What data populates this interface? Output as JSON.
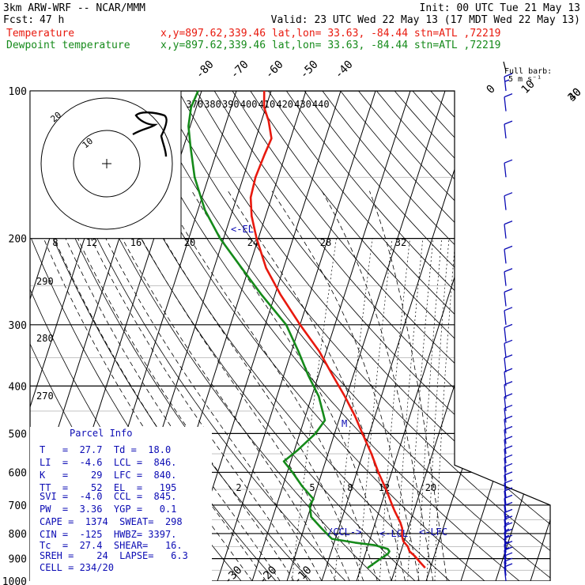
{
  "header": {
    "model": "3km ARW-WRF -- NCAR/MMM",
    "init": "Init: 00 UTC Tue 21 May 13",
    "fcst_label": "Fcst:",
    "fcst_hours": "47 h",
    "valid": "Valid: 23 UTC Wed 22 May 13 (17 MDT Wed 22 May 13)",
    "temp_label": "Temperature",
    "temp_info": "x,y=897.62,339.46   lat,lon= 33.63, -84.44   stn=ATL ,72219",
    "dew_label": "Dewpoint temperature",
    "dew_info": "x,y=897.62,339.46   lat,lon= 33.63, -84.44   stn=ATL ,72219"
  },
  "colors": {
    "temperature": "#e8190e",
    "dewpoint": "#158a1a",
    "text_blue": "#0b0bb4",
    "axes": "#000000"
  },
  "barb_legend": {
    "title": "Full barb:",
    "value": "5 m s⁻¹"
  },
  "hodograph": {
    "rings": [
      "20",
      "10"
    ],
    "kts_label": "kts"
  },
  "parcel": {
    "title": "Parcel Info",
    "rows": [
      "T   =  27.7  Td =  18.0",
      "LI  =  -4.6  LCL =  846.",
      "K   =    29  LFC =  840.",
      "TT  =    52  EL  =   195",
      "SVI =  -4.0  CCL =  845.",
      "PW  =  3.36  YGP =   0.1",
      "CAPE =  1374  SWEAT=  298",
      "CIN =  -125  HWBZ= 3397.",
      "Tc  =  27.4  SHEAR=   16.",
      "SREH =    24  LAPSE=   6.3",
      "CELL = 234/20"
    ]
  },
  "level_markers": {
    "el": "<-EL",
    "ccl": "/CCL->",
    "lcl": "<-LCL",
    "lfc": "<-LFC",
    "m": "M"
  },
  "chart_data": {
    "type": "line",
    "title": "Skew-T Log-P sounding, stn=ATL",
    "pressure_levels": [
      100,
      200,
      300,
      400,
      500,
      600,
      700,
      800,
      900,
      1000
    ],
    "temperature_ticks": [
      -80,
      -70,
      -60,
      -50,
      -40,
      -30,
      -20,
      -10,
      0,
      10,
      30,
      40
    ],
    "theta_labels": [
      370,
      380,
      390,
      400,
      410,
      420,
      430,
      440
    ],
    "theta_labels_left": [
      290,
      280,
      270
    ],
    "mixing_ratio_labels_top": [
      8,
      12,
      16,
      20,
      24,
      28,
      32
    ],
    "mixing_ratio_labels_low": [
      2,
      5,
      8,
      12,
      20
    ],
    "series": [
      {
        "name": "Temperature",
        "points": [
          [
            940,
            28.5
          ],
          [
            915,
            26.5
          ],
          [
            890,
            24.5
          ],
          [
            870,
            22.5
          ],
          [
            850,
            21.5
          ],
          [
            830,
            19.8
          ],
          [
            810,
            18.9
          ],
          [
            780,
            18.2
          ],
          [
            760,
            17.2
          ],
          [
            720,
            14.5
          ],
          [
            700,
            13.2
          ],
          [
            650,
            10.0
          ],
          [
            600,
            6.2
          ],
          [
            550,
            2.5
          ],
          [
            500,
            -2.0
          ],
          [
            460,
            -5.8
          ],
          [
            420,
            -10.5
          ],
          [
            380,
            -16.0
          ],
          [
            340,
            -22.0
          ],
          [
            300,
            -30.0
          ],
          [
            260,
            -38.5
          ],
          [
            230,
            -45.0
          ],
          [
            200,
            -50.5
          ],
          [
            180,
            -54.0
          ],
          [
            165,
            -56.0
          ],
          [
            150,
            -56.5
          ],
          [
            135,
            -56.0
          ],
          [
            125,
            -55.5
          ],
          [
            115,
            -58.0
          ],
          [
            108,
            -60.5
          ],
          [
            100,
            -62.0
          ]
        ]
      },
      {
        "name": "Dewpoint temperature",
        "points": [
          [
            940,
            12.0
          ],
          [
            905,
            14.5
          ],
          [
            880,
            16.5
          ],
          [
            870,
            16.7
          ],
          [
            860,
            16.0
          ],
          [
            845,
            12.0
          ],
          [
            835,
            6.0
          ],
          [
            820,
            -1.0
          ],
          [
            800,
            -3.0
          ],
          [
            780,
            -5.0
          ],
          [
            740,
            -9.0
          ],
          [
            700,
            -10.5
          ],
          [
            680,
            -10.0
          ],
          [
            640,
            -14.5
          ],
          [
            600,
            -18.5
          ],
          [
            570,
            -22.0
          ],
          [
            540,
            -19.0
          ],
          [
            500,
            -15.5
          ],
          [
            470,
            -14.0
          ],
          [
            420,
            -18.0
          ],
          [
            380,
            -23.0
          ],
          [
            340,
            -28.0
          ],
          [
            300,
            -34.0
          ],
          [
            260,
            -44.0
          ],
          [
            230,
            -52.0
          ],
          [
            200,
            -61.0
          ],
          [
            175,
            -68.0
          ],
          [
            150,
            -74.0
          ],
          [
            130,
            -78.0
          ],
          [
            118,
            -80.5
          ],
          [
            108,
            -81.5
          ],
          [
            100,
            -81.0
          ]
        ]
      }
    ],
    "wind_barbs": [
      {
        "p": 1000,
        "dir": 305,
        "kts": 10
      },
      {
        "p": 975,
        "dir": 300,
        "kts": 10
      },
      {
        "p": 950,
        "dir": 290,
        "kts": 10
      },
      {
        "p": 925,
        "dir": 280,
        "kts": 10
      },
      {
        "p": 900,
        "dir": 275,
        "kts": 5
      },
      {
        "p": 875,
        "dir": 270,
        "kts": 5
      },
      {
        "p": 850,
        "dir": 260,
        "kts": 5
      },
      {
        "p": 825,
        "dir": 255,
        "kts": 5
      },
      {
        "p": 800,
        "dir": 250,
        "kts": 5
      },
      {
        "p": 775,
        "dir": 245,
        "kts": 5
      },
      {
        "p": 750,
        "dir": 245,
        "kts": 10
      },
      {
        "p": 725,
        "dir": 240,
        "kts": 10
      },
      {
        "p": 700,
        "dir": 240,
        "kts": 10
      },
      {
        "p": 675,
        "dir": 240,
        "kts": 10
      },
      {
        "p": 650,
        "dir": 240,
        "kts": 10
      },
      {
        "p": 625,
        "dir": 240,
        "kts": 10
      },
      {
        "p": 600,
        "dir": 240,
        "kts": 10
      },
      {
        "p": 575,
        "dir": 240,
        "kts": 10
      },
      {
        "p": 550,
        "dir": 240,
        "kts": 10
      },
      {
        "p": 525,
        "dir": 240,
        "kts": 10
      },
      {
        "p": 500,
        "dir": 240,
        "kts": 10
      },
      {
        "p": 475,
        "dir": 240,
        "kts": 10
      },
      {
        "p": 450,
        "dir": 240,
        "kts": 10
      },
      {
        "p": 425,
        "dir": 240,
        "kts": 10
      },
      {
        "p": 400,
        "dir": 240,
        "kts": 10
      },
      {
        "p": 375,
        "dir": 240,
        "kts": 10
      },
      {
        "p": 350,
        "dir": 240,
        "kts": 10
      },
      {
        "p": 325,
        "dir": 240,
        "kts": 10
      },
      {
        "p": 300,
        "dir": 240,
        "kts": 10
      },
      {
        "p": 275,
        "dir": 240,
        "kts": 10
      },
      {
        "p": 250,
        "dir": 240,
        "kts": 10
      },
      {
        "p": 225,
        "dir": 240,
        "kts": 10
      },
      {
        "p": 200,
        "dir": 240,
        "kts": 10
      },
      {
        "p": 175,
        "dir": 240,
        "kts": 10
      },
      {
        "p": 150,
        "dir": 240,
        "kts": 10
      },
      {
        "p": 125,
        "dir": 240,
        "kts": 10
      },
      {
        "p": 110,
        "dir": 240,
        "kts": 10
      },
      {
        "p": 100,
        "dir": 240,
        "kts": 5
      }
    ]
  }
}
